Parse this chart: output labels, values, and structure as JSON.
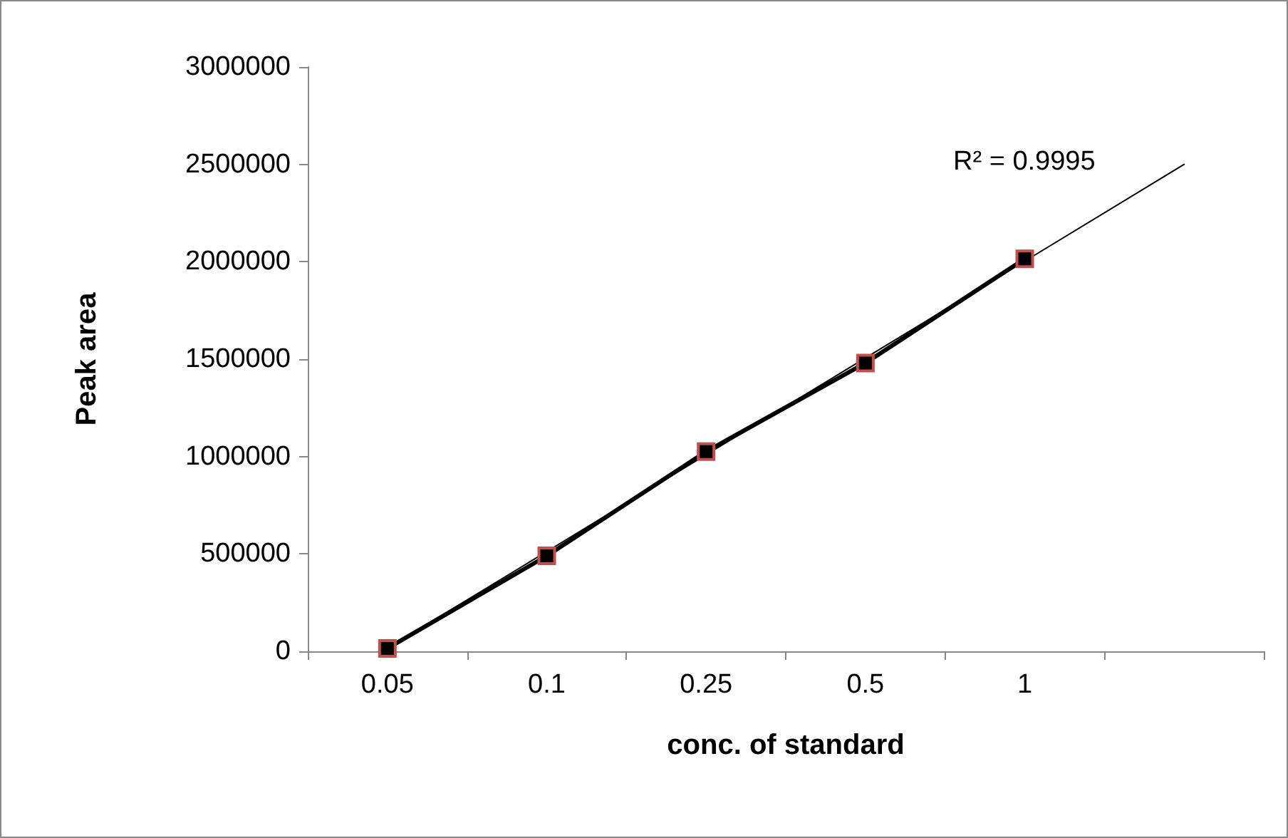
{
  "chart_data": {
    "type": "line",
    "xlabel": "conc. of standard",
    "ylabel": "Peak area",
    "categories": [
      "0.05",
      "0.1",
      "0.25",
      "0.5",
      "1",
      null
    ],
    "series": [
      {
        "color": "#000000",
        "values": [
          15000,
          490000,
          1025000,
          1480000,
          2015000,
          null
        ],
        "marker": "square",
        "line_style": "solid"
      },
      {
        "color": "#000000",
        "values": [
          15000,
          512000,
          1009000,
          1506000,
          2003000,
          2500000
        ],
        "marker": "none",
        "line_style": "solid"
      }
    ],
    "ylim": [
      0,
      3000000
    ],
    "yticks": [
      0,
      500000,
      1000000,
      1500000,
      2000000,
      2500000,
      3000000
    ],
    "grid": false,
    "annotations": [
      "R² = 0.9995"
    ]
  }
}
